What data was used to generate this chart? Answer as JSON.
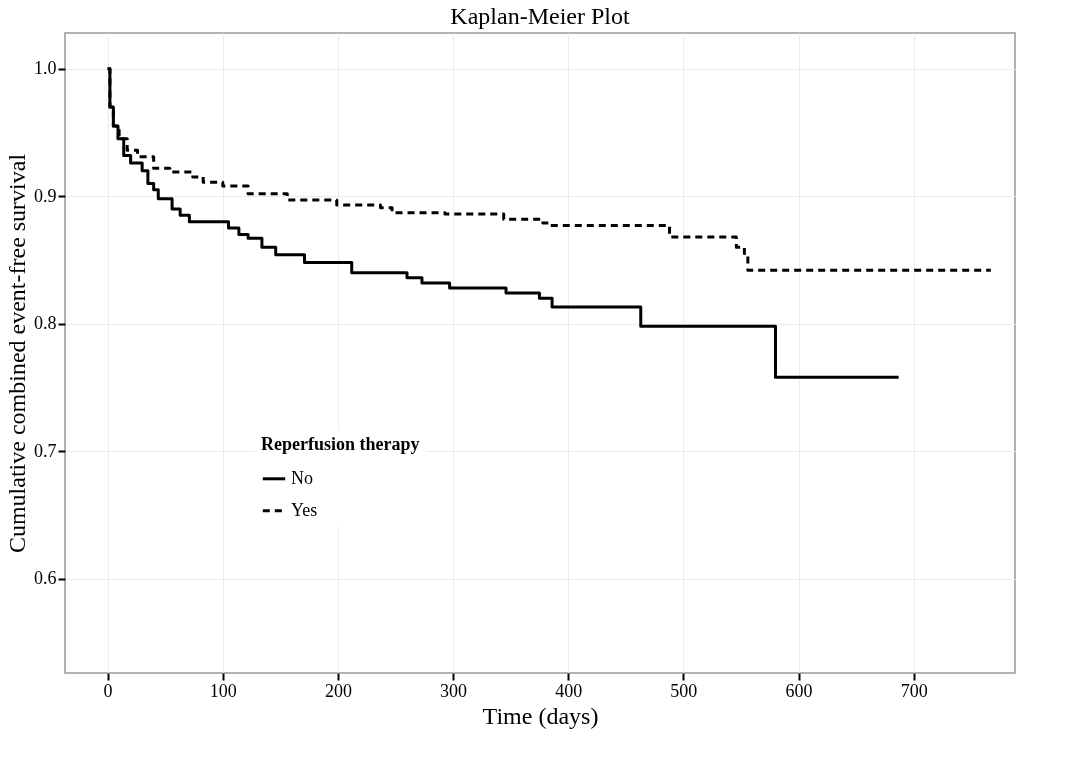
{
  "chart_data": {
    "type": "step",
    "title": "Kaplan-Meier Plot",
    "xlabel": "Time (days)",
    "ylabel": "Cumulative combined event-free survival",
    "legend_title": "Reperfusion therapy",
    "xlim": [
      -37,
      788
    ],
    "xticks": [
      0,
      100,
      200,
      300,
      400,
      500,
      600,
      700
    ],
    "ylim": [
      0.526,
      1.028
    ],
    "yticks": [
      {
        "value": 0.6,
        "label": "0.6"
      },
      {
        "value": 0.7,
        "label": "0.7"
      },
      {
        "value": 0.8,
        "label": "0.8"
      },
      {
        "value": 0.9,
        "label": "0.9"
      },
      {
        "value": 1.0,
        "label": "1.0"
      }
    ],
    "grid": true,
    "legend": "bottom left",
    "series": [
      {
        "name": "No",
        "color": "#000000",
        "line_style": "solid",
        "x": [
          0,
          2,
          5,
          9,
          14,
          20,
          30,
          35,
          40,
          44,
          56,
          63,
          71,
          105,
          114,
          122,
          134,
          146,
          171,
          212,
          260,
          273,
          297,
          346,
          375,
          386,
          463,
          580,
          687
        ],
        "values": [
          1.0,
          0.97,
          0.955,
          0.945,
          0.932,
          0.926,
          0.92,
          0.91,
          0.905,
          0.898,
          0.89,
          0.885,
          0.88,
          0.875,
          0.87,
          0.867,
          0.86,
          0.854,
          0.848,
          0.84,
          0.836,
          0.832,
          0.828,
          0.824,
          0.82,
          0.813,
          0.798,
          0.758,
          0.758
        ]
      },
      {
        "name": "Yes",
        "color": "#000000",
        "line_style": "dashed",
        "x": [
          0,
          2,
          5,
          10,
          17,
          26,
          40,
          54,
          74,
          83,
          100,
          122,
          156,
          199,
          237,
          247,
          293,
          344,
          378,
          383,
          488,
          546,
          553,
          556,
          767
        ],
        "values": [
          1.0,
          0.97,
          0.955,
          0.945,
          0.936,
          0.931,
          0.922,
          0.919,
          0.915,
          0.911,
          0.908,
          0.902,
          0.897,
          0.893,
          0.891,
          0.887,
          0.886,
          0.882,
          0.879,
          0.877,
          0.868,
          0.86,
          0.855,
          0.842,
          0.842
        ]
      }
    ]
  }
}
